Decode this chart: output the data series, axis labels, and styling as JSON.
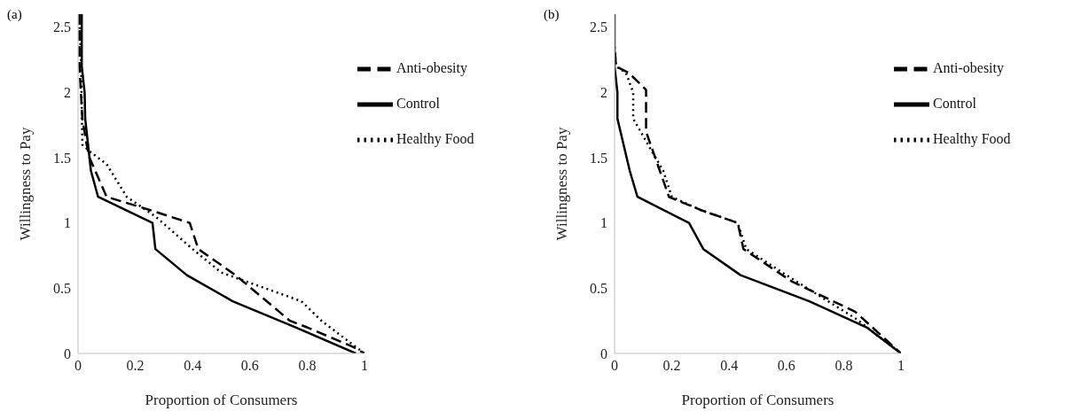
{
  "chart_data": [
    {
      "type": "line",
      "title": "(a)",
      "xlabel": "Proportion of Consumers",
      "ylabel": "Willingness to Pay",
      "xlim": [
        0,
        1
      ],
      "xticks": [
        0,
        0.2,
        0.4,
        0.6,
        0.8,
        1
      ],
      "ylim": [
        0,
        2.6
      ],
      "yticks": [
        0,
        0.5,
        1,
        1.5,
        2,
        2.5
      ],
      "grid": false,
      "legend": "top right",
      "marker": "none",
      "series": [
        {
          "name": "Control",
          "color": "#000000",
          "line_style": "solid",
          "x": [
            0.013,
            0.013,
            0.023,
            0.025,
            0.045,
            0.07,
            0.26,
            0.27,
            0.38,
            0.54,
            0.76,
            0.97
          ],
          "values": [
            2.6,
            2.2,
            2.0,
            1.8,
            1.4,
            1.2,
            1.0,
            0.8,
            0.6,
            0.4,
            0.2,
            0
          ]
        },
        {
          "name": "Anti-obesity",
          "color": "#000000",
          "line_style": "dashed",
          "x": [
            0.005,
            0.005,
            0.015,
            0.03,
            0.04,
            0.1,
            0.25,
            0.39,
            0.42,
            0.55,
            0.74,
            0.8,
            0.96,
            1
          ],
          "values": [
            2.6,
            2.2,
            1.8,
            1.6,
            1.5,
            1.2,
            1.1,
            1.0,
            0.8,
            0.6,
            0.25,
            0.2,
            0.05,
            0
          ]
        },
        {
          "name": "Healthy Food",
          "color": "#000000",
          "line_style": "dotted",
          "x": [
            0.005,
            0.01,
            0.015,
            0.04,
            0.1,
            0.17,
            0.27,
            0.4,
            0.5,
            0.78,
            0.85,
            1
          ],
          "values": [
            2.5,
            2.3,
            1.6,
            1.55,
            1.45,
            1.2,
            1.05,
            0.8,
            0.62,
            0.4,
            0.25,
            0
          ]
        }
      ]
    },
    {
      "type": "line",
      "title": "(b)",
      "xlabel": "Proportion of Consumers",
      "ylabel": "Willingness to Pay",
      "xlim": [
        0,
        1
      ],
      "xticks": [
        0,
        0.2,
        0.4,
        0.6,
        0.8,
        1
      ],
      "ylim": [
        0,
        2.6
      ],
      "yticks": [
        0,
        0.5,
        1,
        1.5,
        2,
        2.5
      ],
      "grid": false,
      "legend": "top right",
      "marker": "none",
      "series": [
        {
          "name": "Control",
          "color": "#000000",
          "line_style": "solid",
          "x": [
            0,
            0,
            0.01,
            0.01,
            0.053,
            0.08,
            0.26,
            0.31,
            0.44,
            0.68,
            0.88,
            1
          ],
          "values": [
            2.6,
            2.2,
            2.0,
            1.8,
            1.4,
            1.2,
            1.0,
            0.8,
            0.6,
            0.4,
            0.2,
            0
          ]
        },
        {
          "name": "Anti-obesity",
          "color": "#000000",
          "line_style": "dashed",
          "x": [
            0.002,
            0.005,
            0.05,
            0.11,
            0.11,
            0.19,
            0.3,
            0.43,
            0.45,
            0.62,
            0.84,
            0.95,
            1
          ],
          "values": [
            2.3,
            2.2,
            2.15,
            2.02,
            1.7,
            1.2,
            1.1,
            1.0,
            0.8,
            0.55,
            0.32,
            0.1,
            0
          ]
        },
        {
          "name": "Healthy Food",
          "color": "#000000",
          "line_style": "dotted",
          "x": [
            0,
            0.005,
            0.04,
            0.065,
            0.065,
            0.13,
            0.17,
            0.2,
            0.3,
            0.43,
            0.46,
            0.6,
            0.84,
            1
          ],
          "values": [
            2.35,
            2.2,
            2.15,
            2.0,
            1.8,
            1.55,
            1.4,
            1.2,
            1.1,
            1.0,
            0.8,
            0.6,
            0.27,
            0
          ]
        }
      ]
    }
  ]
}
